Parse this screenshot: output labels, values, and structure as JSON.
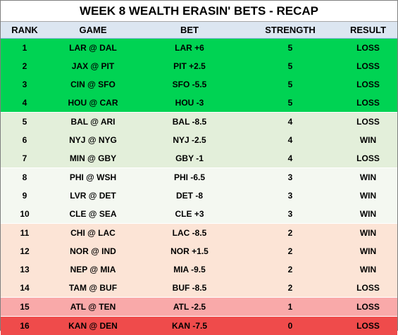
{
  "title": "WEEK 8 WEALTH ERASIN' BETS - RECAP",
  "columns": {
    "rank": "RANK",
    "game": "GAME",
    "bet": "BET",
    "strength": "STRENGTH",
    "result": "RESULT"
  },
  "strength_colors": {
    "5": "#00d353",
    "4": "#e3efda",
    "3": "#f4f8f1",
    "2": "#fce4d6",
    "1": "#f9a9a9",
    "0": "#ef4b4b"
  },
  "rows": [
    {
      "rank": "1",
      "game": "LAR @ DAL",
      "bet": "LAR +6",
      "strength": "5",
      "result": "LOSS"
    },
    {
      "rank": "2",
      "game": "JAX @ PIT",
      "bet": "PIT +2.5",
      "strength": "5",
      "result": "LOSS"
    },
    {
      "rank": "3",
      "game": "CIN @ SFO",
      "bet": "SFO -5.5",
      "strength": "5",
      "result": "LOSS"
    },
    {
      "rank": "4",
      "game": "HOU @ CAR",
      "bet": "HOU -3",
      "strength": "5",
      "result": "LOSS"
    },
    {
      "rank": "5",
      "game": "BAL @ ARI",
      "bet": "BAL -8.5",
      "strength": "4",
      "result": "LOSS"
    },
    {
      "rank": "6",
      "game": "NYJ @ NYG",
      "bet": "NYJ -2.5",
      "strength": "4",
      "result": "WIN"
    },
    {
      "rank": "7",
      "game": "MIN @ GBY",
      "bet": "GBY -1",
      "strength": "4",
      "result": "LOSS"
    },
    {
      "rank": "8",
      "game": "PHI @ WSH",
      "bet": "PHI -6.5",
      "strength": "3",
      "result": "WIN"
    },
    {
      "rank": "9",
      "game": "LVR @ DET",
      "bet": "DET -8",
      "strength": "3",
      "result": "WIN"
    },
    {
      "rank": "10",
      "game": "CLE @ SEA",
      "bet": "CLE +3",
      "strength": "3",
      "result": "WIN"
    },
    {
      "rank": "11",
      "game": "CHI @ LAC",
      "bet": "LAC -8.5",
      "strength": "2",
      "result": "WIN"
    },
    {
      "rank": "12",
      "game": "NOR @ IND",
      "bet": "NOR +1.5",
      "strength": "2",
      "result": "WIN"
    },
    {
      "rank": "13",
      "game": "NEP @ MIA",
      "bet": "MIA -9.5",
      "strength": "2",
      "result": "WIN"
    },
    {
      "rank": "14",
      "game": "TAM @ BUF",
      "bet": "BUF -8.5",
      "strength": "2",
      "result": "LOSS"
    },
    {
      "rank": "15",
      "game": "ATL @ TEN",
      "bet": "ATL -2.5",
      "strength": "1",
      "result": "LOSS"
    },
    {
      "rank": "16",
      "game": "KAN @ DEN",
      "bet": "KAN -7.5",
      "strength": "0",
      "result": "LOSS"
    }
  ]
}
